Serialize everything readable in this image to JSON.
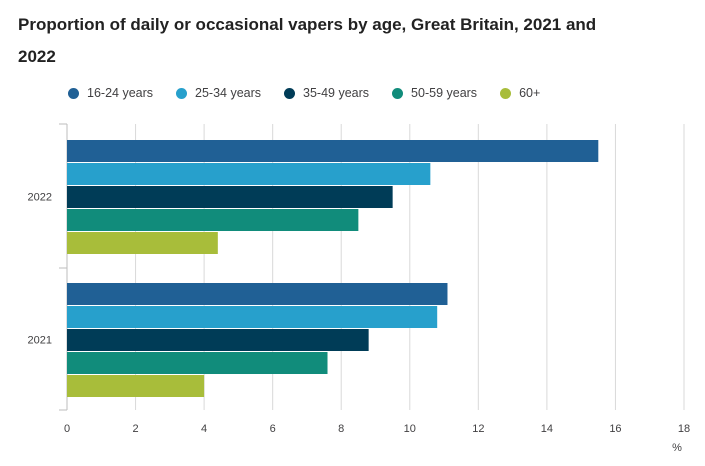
{
  "chart_data": {
    "type": "bar",
    "orientation": "horizontal",
    "title": "Proportion of daily or occasional vapers by age, Great Britain, 2021 and 2022",
    "xlabel": "%",
    "ylabel": "",
    "xlim": [
      0,
      18
    ],
    "x_ticks": [
      0,
      2,
      4,
      6,
      8,
      10,
      12,
      14,
      16,
      18
    ],
    "grid": true,
    "legend_position": "top",
    "categories": [
      "2022",
      "2021"
    ],
    "series": [
      {
        "name": "16-24 years",
        "color": "#206095",
        "values": [
          15.5,
          11.1
        ]
      },
      {
        "name": "25-34 years",
        "color": "#27a0cc",
        "values": [
          10.6,
          10.8
        ]
      },
      {
        "name": "35-49 years",
        "color": "#003c57",
        "values": [
          9.5,
          8.8
        ]
      },
      {
        "name": "50-59 years",
        "color": "#118c7b",
        "values": [
          8.5,
          7.6
        ]
      },
      {
        "name": "60+",
        "color": "#a8bd3a",
        "values": [
          4.4,
          4.0
        ]
      }
    ]
  }
}
